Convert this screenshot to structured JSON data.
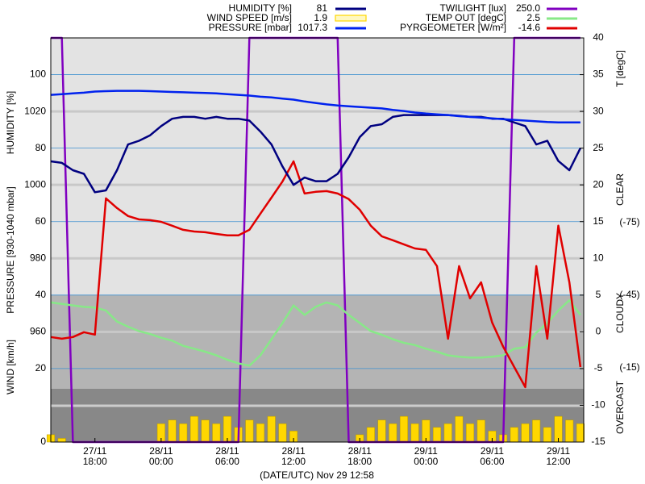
{
  "chart_data": {
    "type": "line",
    "xlabel": "(DATE/UTC) Nov 29 12:58",
    "ylabel": "HUMIDITY [%]",
    "pressure_label": "PRESSURE [930-1040 mbar]",
    "wind_label": "WIND [km/h]",
    "y2label": "T [degC]",
    "annotations": [
      "CLEAR",
      "CLOUDY",
      "OVERCAST"
    ],
    "x": [
      14,
      15,
      16,
      17,
      18,
      19,
      20,
      21,
      22,
      23,
      24,
      25,
      26,
      27,
      28,
      29,
      30,
      31,
      32,
      33,
      34,
      35,
      36,
      37,
      38,
      39,
      40,
      41,
      42,
      43,
      44,
      45,
      46,
      47,
      48,
      49,
      50,
      51,
      52,
      53,
      54,
      55,
      56,
      57,
      58,
      59,
      60,
      61,
      62
    ],
    "xlim": [
      14,
      62.3
    ],
    "xticks": [
      {
        "value": 18,
        "label": "27/11\n18:00"
      },
      {
        "value": 24,
        "label": "28/11\n00:00"
      },
      {
        "value": 30,
        "label": "28/11\n06:00"
      },
      {
        "value": 36,
        "label": "28/11\n12:00"
      },
      {
        "value": 42,
        "label": "28/11\n18:00"
      },
      {
        "value": 48,
        "label": "29/11\n00:00"
      },
      {
        "value": 54,
        "label": "29/11\n06:00"
      },
      {
        "value": 60,
        "label": "29/11\n12:00"
      }
    ],
    "ylim": [
      0,
      110
    ],
    "yticks": [
      0,
      20,
      40,
      60,
      80,
      100
    ],
    "pressure_lim": [
      930,
      1040
    ],
    "pressure_ticks": [
      960,
      980,
      1000,
      1020
    ],
    "y2lim": [
      -15,
      40
    ],
    "y2ticks": [
      -15,
      -10,
      -5,
      0,
      5,
      10,
      15,
      20,
      25,
      30,
      35,
      40
    ],
    "pyrgeometer_lim": [
      15.7,
      -151.3
    ],
    "pyrgeometer_ticks": [
      {
        "value": -75,
        "label": "(-75)"
      },
      {
        "value": -45,
        "label": "(-45)"
      },
      {
        "value": -15,
        "label": "(-15)"
      }
    ],
    "twilight_lim": [
      0,
      250
    ],
    "series": [
      {
        "name": "HUMIDITY [%]",
        "current": "81",
        "color": "#000080",
        "axis": "y",
        "style": "line",
        "values": [
          76.4,
          76,
          74,
          73,
          68,
          68.5,
          74,
          81,
          82,
          83.5,
          86,
          88,
          88.5,
          88.5,
          88,
          88.5,
          88,
          88,
          87.5,
          84.5,
          81,
          75,
          70,
          72,
          71,
          71,
          73,
          77.5,
          83,
          86,
          86.5,
          88.5,
          89,
          89,
          89,
          89,
          89,
          88.8,
          88.5,
          88.5,
          88,
          88,
          87,
          86,
          81,
          82,
          76.5,
          74,
          80
        ]
      },
      {
        "name": "WIND SPEED [m/s]",
        "current": "1.9",
        "color": "#ffd700",
        "axis": "y",
        "style": "bar",
        "values": [
          2,
          1,
          0,
          0,
          0,
          0,
          0,
          0,
          0,
          0,
          5,
          6,
          5,
          7,
          6,
          5,
          7,
          4,
          6,
          5,
          7,
          5,
          3,
          0,
          0,
          0,
          0,
          0,
          2,
          4,
          6,
          5,
          7,
          5,
          6,
          4,
          5,
          7,
          5,
          6,
          3,
          2,
          4,
          5,
          6,
          4,
          7,
          6,
          5
        ]
      },
      {
        "name": "PRESSURE [mbar]",
        "current": "1017.3",
        "color": "#0022ee",
        "axis": "pressure",
        "style": "line",
        "values": [
          1024.5,
          1024.7,
          1024.9,
          1025.1,
          1025.4,
          1025.5,
          1025.6,
          1025.6,
          1025.6,
          1025.5,
          1025.4,
          1025.3,
          1025.2,
          1025.1,
          1025,
          1024.9,
          1024.7,
          1024.5,
          1024.3,
          1024,
          1023.8,
          1023.5,
          1023.2,
          1022.7,
          1022.3,
          1021.9,
          1021.6,
          1021.4,
          1021.2,
          1021,
          1020.8,
          1020.4,
          1020.1,
          1019.7,
          1019.4,
          1019.2,
          1019,
          1018.7,
          1018.5,
          1018.3,
          1018.1,
          1017.9,
          1017.7,
          1017.5,
          1017.3,
          1017.1,
          1017,
          1017,
          1017
        ]
      },
      {
        "name": "TWILIGHT [lux]",
        "current": "250.0",
        "color": "#8000c0",
        "axis": "twilight",
        "style": "line",
        "values": [
          250,
          250,
          0,
          0,
          0,
          0,
          0,
          0,
          0,
          0,
          0,
          0,
          0,
          0,
          0,
          0,
          0,
          0,
          250,
          250,
          250,
          250,
          250,
          250,
          250,
          250,
          250,
          0,
          0,
          0,
          0,
          0,
          0,
          0,
          0,
          0,
          0,
          0,
          0,
          0,
          0,
          0,
          250,
          250,
          250,
          250,
          250,
          250,
          250
        ]
      },
      {
        "name": "TEMP OUT [degC]",
        "current": "2.5",
        "color": "#88e888",
        "axis": "y2",
        "style": "line",
        "values": [
          4,
          3.8,
          3.6,
          3.4,
          3.3,
          2.9,
          1.4,
          0.7,
          0.1,
          -0.3,
          -0.8,
          -1.2,
          -1.9,
          -2.3,
          -2.7,
          -3.2,
          -3.8,
          -4.3,
          -4.6,
          -3.2,
          -1,
          1.2,
          3.6,
          2.3,
          3.4,
          4,
          3.6,
          2.3,
          1.2,
          0.1,
          -0.4,
          -1,
          -1.5,
          -1.8,
          -2.3,
          -2.7,
          -3.2,
          -3.4,
          -3.5,
          -3.5,
          -3.4,
          -3.2,
          -2.3,
          -2.1,
          -0.1,
          1.2,
          2.9,
          4.3,
          2.3
        ]
      },
      {
        "name": "PYRGEOMETER [W/m²]",
        "current": "-14.6",
        "color": "#e00000",
        "axis": "pyrgeometer",
        "style": "line",
        "values": [
          -27.7,
          -27,
          -27.7,
          -29.7,
          -28.7,
          -85,
          -81,
          -77.7,
          -76.3,
          -76,
          -75.3,
          -73.7,
          -72,
          -71.3,
          -71,
          -70.3,
          -69.7,
          -69.7,
          -72,
          -78.7,
          -85.3,
          -92,
          -100.3,
          -87,
          -87.7,
          -88,
          -87,
          -84.7,
          -80.3,
          -73.7,
          -69.3,
          -67.7,
          -66,
          -64.3,
          -63.7,
          -57,
          -27,
          -57,
          -43.7,
          -50.3,
          -33.7,
          -23.7,
          -15.3,
          -7,
          -57,
          -27,
          -73.7,
          -50.3,
          -15.3
        ]
      }
    ]
  }
}
